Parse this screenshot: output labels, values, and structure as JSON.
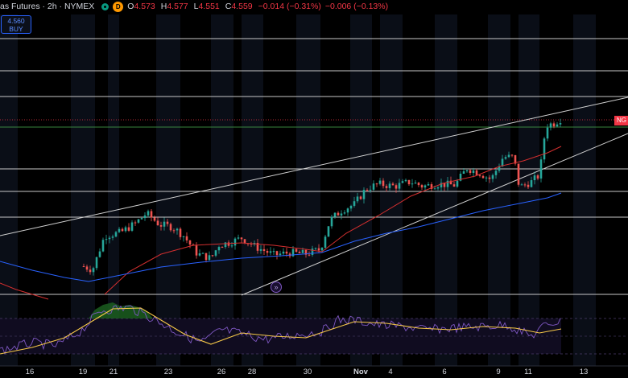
{
  "header": {
    "title": "as Futures · 2h · NYMEX",
    "interval_badge": "D",
    "ohlc": [
      {
        "key": "O",
        "value": "4.573"
      },
      {
        "key": "H",
        "value": "4.577"
      },
      {
        "key": "L",
        "value": "4.551"
      },
      {
        "key": "C",
        "value": "4.559"
      }
    ],
    "change": "−0.014 (−0.31%)",
    "change2": "−0.006 (−0.13%)"
  },
  "buy_button": {
    "price": "4.560",
    "label": "BUY"
  },
  "price_badge": "NG",
  "annotation_icon": "»",
  "x_axis_labels": [
    "16",
    "19",
    "21",
    "23",
    "26",
    "28",
    "30",
    "Nov",
    "4",
    "6",
    "9",
    "11",
    "13"
  ],
  "colors": {
    "background": "#000000",
    "candle_up": "#26a69a",
    "candle_down": "#ef5350",
    "sma_fast": "#d32f2f",
    "sma_slow": "#2962ff",
    "rsi": "#7e57c2",
    "rsi_ma": "#f7c948"
  },
  "chart_data": {
    "type": "candlestick",
    "symbol_timeframe": "2h",
    "x": [
      "16",
      "19",
      "21",
      "23",
      "26",
      "28",
      "30",
      "Nov",
      "4",
      "6",
      "9",
      "11",
      "13"
    ],
    "close_path": [
      [
        "19",
        3.25
      ],
      [
        "21",
        3.56
      ],
      [
        "22",
        3.72
      ],
      [
        "23",
        3.55
      ],
      [
        "25",
        3.35
      ],
      [
        "26",
        3.4
      ],
      [
        "28",
        3.35
      ],
      [
        "30",
        3.38
      ],
      [
        "31",
        3.78
      ],
      [
        "Nov 2",
        3.98
      ],
      [
        "Nov 4",
        3.96
      ],
      [
        "Nov 6",
        4.0
      ],
      [
        "Nov 7",
        4.15
      ],
      [
        "Nov 8",
        4.05
      ],
      [
        "Nov 9",
        4.36
      ],
      [
        "Nov 10",
        4.05
      ],
      [
        "Nov 11",
        4.1
      ],
      [
        "Nov 12",
        4.56
      ]
    ],
    "last": {
      "open": 4.573,
      "high": 4.577,
      "low": 4.551,
      "close": 4.559
    },
    "indicators": [
      "SMA fast (red)",
      "SMA slow (blue)",
      "RSI with MA (lower pane)"
    ],
    "drawings": [
      "ascending channel (two trendlines)",
      "horizontal levels"
    ],
    "grid": false
  }
}
